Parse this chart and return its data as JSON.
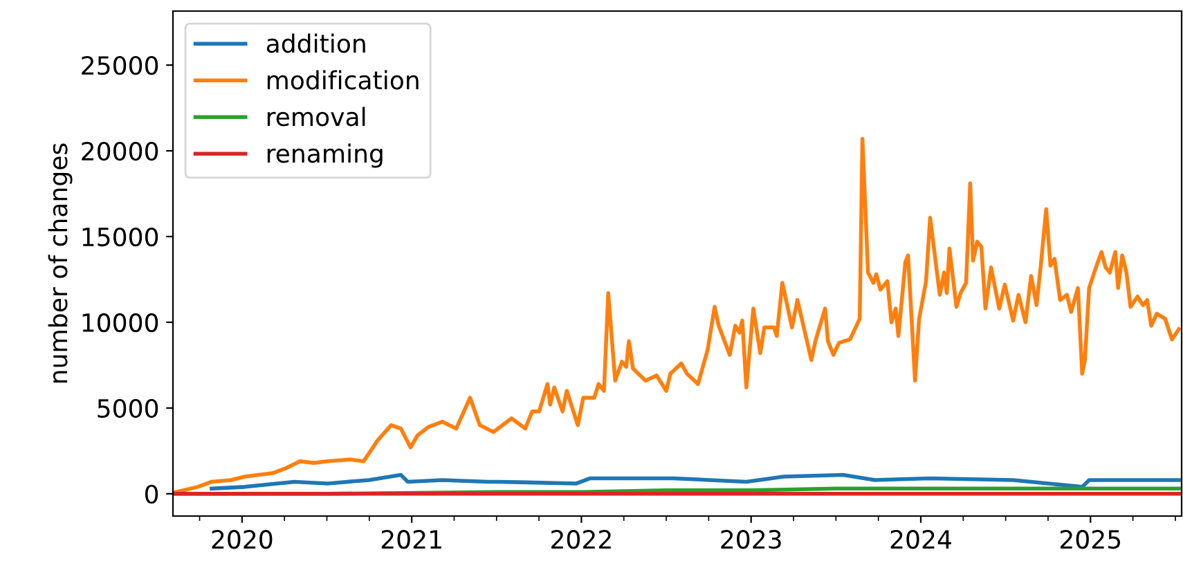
{
  "chart_data": {
    "type": "line",
    "ylabel": "number of changes",
    "legend": "top left",
    "grid": false,
    "xlim": [
      2019.593,
      2025.537
    ],
    "ylim": [
      -1300,
      28150
    ],
    "xticks": [
      {
        "value": 2019.75,
        "label": null
      },
      2020,
      {
        "value": 2020.25,
        "label": null
      },
      {
        "value": 2020.5,
        "label": null
      },
      {
        "value": 2020.75,
        "label": null
      },
      2021,
      {
        "value": 2021.25,
        "label": null
      },
      {
        "value": 2021.5,
        "label": null
      },
      {
        "value": 2021.75,
        "label": null
      },
      2022,
      {
        "value": 2022.25,
        "label": null
      },
      {
        "value": 2022.5,
        "label": null
      },
      {
        "value": 2022.75,
        "label": null
      },
      2023,
      {
        "value": 2023.25,
        "label": null
      },
      {
        "value": 2023.5,
        "label": null
      },
      {
        "value": 2023.75,
        "label": null
      },
      2024,
      {
        "value": 2024.25,
        "label": null
      },
      {
        "value": 2024.5,
        "label": null
      },
      {
        "value": 2024.75,
        "label": null
      },
      2025,
      {
        "value": 2025.25,
        "label": null
      },
      {
        "value": 2025.5,
        "label": null
      }
    ],
    "yticks": [
      0,
      5000,
      10000,
      15000,
      20000,
      25000
    ],
    "series": [
      {
        "name": "addition",
        "color": "#1f77b4",
        "x": [
          2019.821,
          2020.016,
          2020.309,
          2020.505,
          2020.749,
          2020.936,
          2020.977,
          2021.181,
          2021.45,
          2021.507,
          2021.971,
          2022.052,
          2022.541,
          2022.972,
          2023.192,
          2023.542,
          2023.73,
          2024.055,
          2024.544,
          2024.951,
          2024.992,
          2025.358,
          2025.521
        ],
        "values": [
          300,
          400,
          700,
          600,
          800,
          1100,
          700,
          800,
          700,
          700,
          600,
          900,
          900,
          700,
          1000,
          1100,
          800,
          900,
          800,
          400,
          800,
          800,
          800
        ]
      },
      {
        "name": "modification",
        "color": "#ff7f0e",
        "x": [
          2019.609,
          2019.739,
          2019.821,
          2019.935,
          2020.016,
          2020.179,
          2020.261,
          2020.342,
          2020.423,
          2020.505,
          2020.635,
          2020.717,
          2020.798,
          2020.879,
          2020.936,
          2020.993,
          2021.034,
          2021.099,
          2021.181,
          2021.262,
          2021.344,
          2021.401,
          2021.482,
          2021.588,
          2021.669,
          2021.71,
          2021.751,
          2021.8,
          2021.816,
          2021.84,
          2021.889,
          2021.914,
          2021.979,
          2022.011,
          2022.076,
          2022.101,
          2022.133,
          2022.158,
          2022.199,
          2022.239,
          2022.264,
          2022.28,
          2022.304,
          2022.378,
          2022.443,
          2022.5,
          2022.524,
          2022.589,
          2022.622,
          2022.687,
          2022.744,
          2022.785,
          2022.809,
          2022.874,
          2022.907,
          2022.931,
          2022.948,
          2022.972,
          2023.013,
          2023.054,
          2023.078,
          2023.135,
          2023.151,
          2023.184,
          2023.241,
          2023.273,
          2023.355,
          2023.379,
          2023.436,
          2023.453,
          2023.485,
          2023.518,
          2023.583,
          2023.64,
          2023.656,
          2023.689,
          2023.721,
          2023.738,
          2023.762,
          2023.803,
          2023.827,
          2023.852,
          2023.868,
          2023.909,
          2023.925,
          2023.966,
          2023.99,
          2024.031,
          2024.055,
          2024.112,
          2024.137,
          2024.153,
          2024.169,
          2024.21,
          2024.234,
          2024.267,
          2024.291,
          2024.308,
          2024.332,
          2024.357,
          2024.381,
          2024.414,
          2024.462,
          2024.495,
          2024.544,
          2024.576,
          2024.617,
          2024.65,
          2024.682,
          2024.707,
          2024.739,
          2024.764,
          2024.788,
          2024.821,
          2024.861,
          2024.886,
          2024.926,
          2024.951,
          2024.967,
          2024.992,
          2025.032,
          2025.065,
          2025.089,
          2025.114,
          2025.146,
          2025.163,
          2025.187,
          2025.212,
          2025.236,
          2025.277,
          2025.309,
          2025.334,
          2025.358,
          2025.391,
          2025.44,
          2025.48,
          2025.521
        ],
        "values": [
          100,
          400,
          700,
          800,
          1000,
          1200,
          1500,
          1900,
          1800,
          1900,
          2000,
          1900,
          3100,
          4000,
          3800,
          2700,
          3400,
          3900,
          4200,
          3800,
          5600,
          4000,
          3600,
          4400,
          3800,
          4800,
          4800,
          6400,
          5200,
          6200,
          4800,
          6000,
          4000,
          5600,
          5600,
          6400,
          6000,
          11700,
          6600,
          7700,
          7400,
          8900,
          7300,
          6600,
          6900,
          6000,
          7000,
          7600,
          7000,
          6400,
          8400,
          10900,
          9800,
          8100,
          9800,
          9400,
          10100,
          6200,
          10800,
          8200,
          9700,
          9700,
          9200,
          12300,
          9700,
          11300,
          7800,
          8900,
          10800,
          8900,
          8100,
          8800,
          9000,
          10200,
          20700,
          12900,
          12300,
          12800,
          11900,
          12400,
          10000,
          10800,
          9200,
          13500,
          13900,
          6600,
          10200,
          12400,
          16100,
          11600,
          12900,
          11700,
          14300,
          10900,
          11700,
          12300,
          18100,
          13600,
          14700,
          14400,
          10800,
          13200,
          10800,
          12200,
          10100,
          11600,
          10000,
          12700,
          11000,
          13300,
          16600,
          13300,
          13700,
          11300,
          11600,
          10600,
          12000,
          7000,
          7800,
          12000,
          13200,
          14100,
          13200,
          12900,
          14100,
          12000,
          13900,
          12900,
          10900,
          11500,
          11000,
          11300,
          9800,
          10500,
          10200,
          9000,
          9600
        ]
      },
      {
        "name": "removal",
        "color": "#2ca02c",
        "x": [
          2019.609,
          2020.5,
          2021.5,
          2022.0,
          2022.5,
          2023.0,
          2023.5,
          2024.0,
          2024.5,
          2025.0,
          2025.521
        ],
        "values": [
          0,
          0,
          100,
          100,
          200,
          200,
          300,
          300,
          300,
          300,
          300
        ]
      },
      {
        "name": "renaming",
        "color": "#d62728",
        "x": [
          2019.609,
          2021.0,
          2022.0,
          2023.0,
          2024.0,
          2025.521
        ],
        "values": [
          0,
          0,
          0,
          0,
          0,
          0
        ]
      }
    ]
  }
}
